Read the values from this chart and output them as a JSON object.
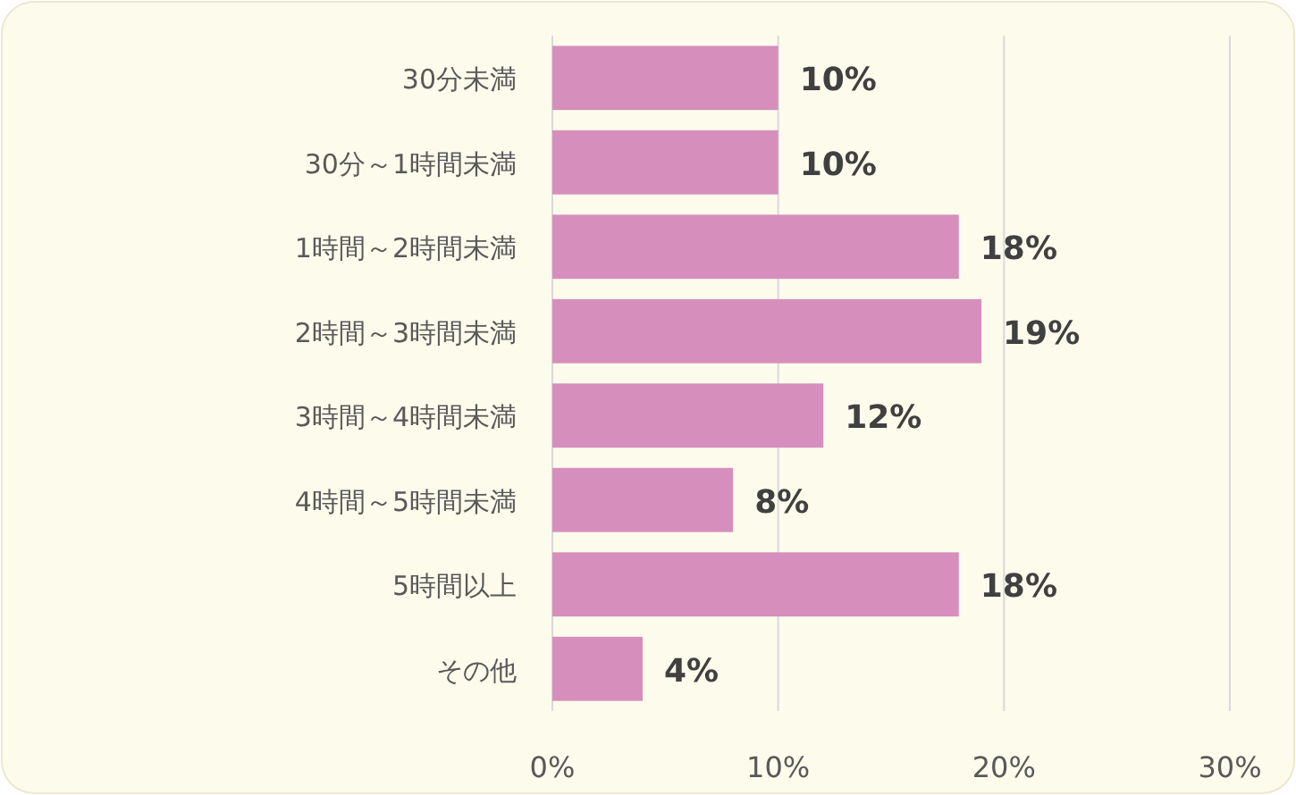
{
  "chart_data": {
    "type": "bar",
    "orientation": "horizontal",
    "categories": [
      "30分未満",
      "30分～1時間未満",
      "1時間～2時間未満",
      "2時間～3時間未満",
      "3時間～4時間未満",
      "4時間～5時間未満",
      "5時間以上",
      "その他"
    ],
    "values": [
      10,
      10,
      18,
      19,
      12,
      8,
      18,
      4
    ],
    "value_labels": [
      "10%",
      "10%",
      "18%",
      "19%",
      "12%",
      "8%",
      "18%",
      "4%"
    ],
    "color": "#d68fbd",
    "xlim": [
      0,
      30
    ],
    "xticks": [
      {
        "value": 0,
        "label": "0%"
      },
      {
        "value": 10,
        "label": "10%"
      },
      {
        "value": 20,
        "label": "20%"
      },
      {
        "value": 30,
        "label": "30%"
      }
    ],
    "grid": "x"
  }
}
